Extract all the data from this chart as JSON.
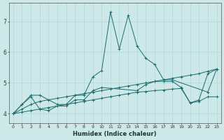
{
  "xlabel": "Humidex (Indice chaleur)",
  "xlim": [
    -0.5,
    23.5
  ],
  "ylim": [
    3.7,
    7.6
  ],
  "xticks": [
    0,
    1,
    2,
    3,
    4,
    5,
    6,
    7,
    8,
    9,
    10,
    11,
    12,
    13,
    14,
    15,
    16,
    17,
    18,
    19,
    20,
    21,
    22,
    23
  ],
  "yticks": [
    4,
    5,
    6,
    7
  ],
  "bg_color": "#cde8e8",
  "line_color": "#1a6b6b",
  "series": [
    {
      "x": [
        0,
        1,
        2,
        3,
        5,
        6,
        7,
        8,
        9,
        10,
        11,
        12,
        13,
        14,
        15,
        16,
        17,
        18,
        22,
        23
      ],
      "y": [
        4.0,
        4.3,
        4.6,
        4.6,
        4.3,
        4.3,
        4.6,
        4.6,
        5.2,
        5.4,
        7.3,
        6.1,
        7.2,
        6.2,
        5.8,
        5.6,
        5.1,
        5.1,
        4.7,
        5.45
      ]
    },
    {
      "x": [
        0,
        1,
        2,
        3,
        4,
        5,
        6,
        7,
        8,
        9,
        10,
        11,
        12,
        13,
        14,
        15,
        16,
        17,
        18,
        19,
        20,
        21,
        22,
        23
      ],
      "y": [
        4.0,
        4.15,
        4.3,
        4.4,
        4.45,
        4.5,
        4.55,
        4.6,
        4.65,
        4.7,
        4.75,
        4.8,
        4.85,
        4.9,
        4.95,
        5.0,
        5.05,
        5.1,
        5.15,
        5.2,
        5.25,
        5.3,
        5.38,
        5.45
      ]
    },
    {
      "x": [
        0,
        1,
        2,
        3,
        4,
        5,
        6,
        7,
        8,
        9,
        10,
        11,
        12,
        13,
        14,
        15,
        16,
        17,
        18,
        19,
        20,
        21,
        22,
        23
      ],
      "y": [
        4.0,
        4.05,
        4.1,
        4.15,
        4.2,
        4.25,
        4.3,
        4.35,
        4.4,
        4.45,
        4.5,
        4.55,
        4.6,
        4.65,
        4.7,
        4.72,
        4.75,
        4.77,
        4.8,
        4.82,
        4.35,
        4.4,
        4.55,
        4.55
      ]
    },
    {
      "x": [
        0,
        1,
        2,
        3,
        4,
        5,
        6,
        7,
        8,
        9,
        10,
        14,
        15,
        16,
        17,
        18,
        19,
        20,
        21,
        22,
        23
      ],
      "y": [
        4.0,
        4.3,
        4.55,
        4.15,
        4.1,
        4.25,
        4.25,
        4.45,
        4.45,
        4.75,
        4.85,
        4.75,
        4.95,
        5.05,
        5.05,
        5.05,
        4.85,
        4.35,
        4.45,
        5.3,
        5.45
      ]
    }
  ]
}
